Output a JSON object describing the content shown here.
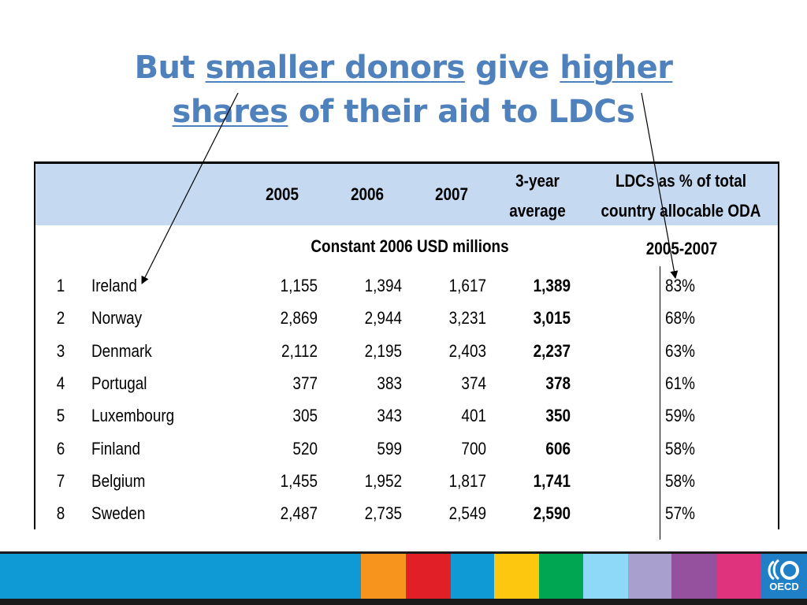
{
  "title": {
    "part1": "But ",
    "underline1": "smaller donors",
    "part2": " give ",
    "underline2": "higher",
    "underline3": "shares",
    "part3": " of their aid to LDCs"
  },
  "table": {
    "headers": {
      "y2005": "2005",
      "y2006": "2006",
      "y2007": "2007",
      "avg_line1": "3-year",
      "avg_line2": "average",
      "ldc_line1": "LDCs as % of total",
      "ldc_line2": "country allocable ODA"
    },
    "subheaders": {
      "units": "Constant 2006 USD millions",
      "period": "2005-2007"
    },
    "rows": [
      {
        "rank": "1",
        "country": "Ireland",
        "v2005": "1,155",
        "v2006": "1,394",
        "v2007": "1,617",
        "avg": "1,389",
        "ldc": "83%"
      },
      {
        "rank": "2",
        "country": "Norway",
        "v2005": "2,869",
        "v2006": "2,944",
        "v2007": "3,231",
        "avg": "3,015",
        "ldc": "68%"
      },
      {
        "rank": "3",
        "country": "Denmark",
        "v2005": "2,112",
        "v2006": "2,195",
        "v2007": "2,403",
        "avg": "2,237",
        "ldc": "63%"
      },
      {
        "rank": "4",
        "country": "Portugal",
        "v2005": "377",
        "v2006": "383",
        "v2007": "374",
        "avg": "378",
        "ldc": "61%"
      },
      {
        "rank": "5",
        "country": "Luxembourg",
        "v2005": "305",
        "v2006": "343",
        "v2007": "401",
        "avg": "350",
        "ldc": "59%"
      },
      {
        "rank": "6",
        "country": "Finland",
        "v2005": "520",
        "v2006": "599",
        "v2007": "700",
        "avg": "606",
        "ldc": "58%"
      },
      {
        "rank": "7",
        "country": "Belgium",
        "v2005": "1,455",
        "v2006": "1,952",
        "v2007": "1,817",
        "avg": "1,741",
        "ldc": "58%"
      },
      {
        "rank": "8",
        "country": "Sweden",
        "v2005": "2,487",
        "v2006": "2,735",
        "v2007": "2,549",
        "avg": "2,590",
        "ldc": "57%"
      }
    ]
  },
  "footer": {
    "logo_text": "OECD",
    "colors": [
      "#0f9ad6",
      "#f7941d",
      "#e01f26",
      "#0f9ad6",
      "#fdc70f",
      "#00a651",
      "#8ed8f8",
      "#a89fcf",
      "#96519e",
      "#e0337d"
    ]
  },
  "colors": {
    "title": "#4f81bd",
    "header_band": "#c5d9f1"
  }
}
